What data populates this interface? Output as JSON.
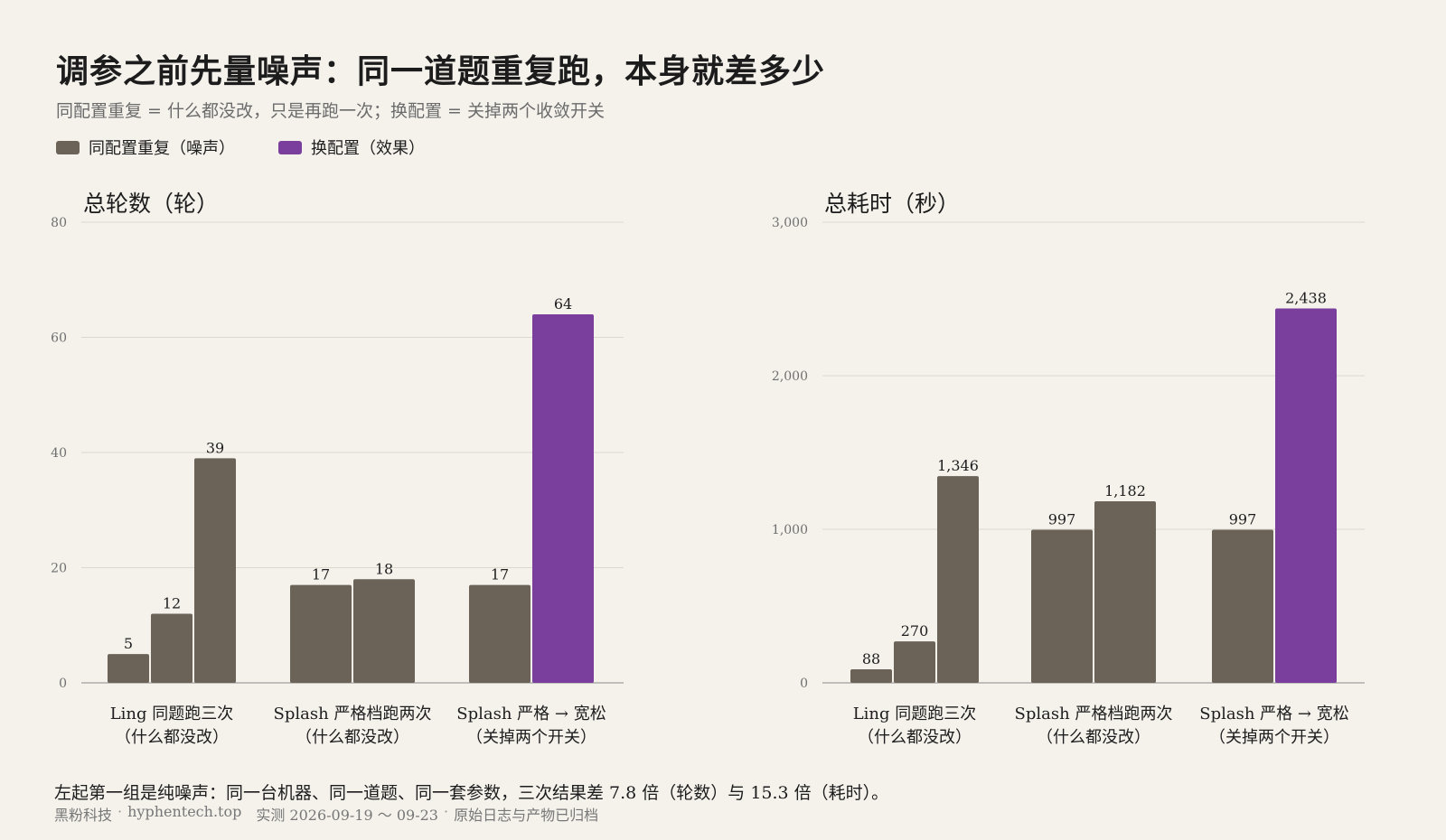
{
  "title": "调参之前先量噪声：同一道题重复跑，本身就差多少",
  "subtitle": "同配置重复 = 什么都没改，只是再跑一次；换配置 = 关掉两个收敛开关",
  "legend": {
    "noise_label": "同配置重复（噪声）",
    "effect_label": "换配置（效果）"
  },
  "colors": {
    "noise": "#6b6357",
    "effect": "#7a3f9d",
    "grid": "#dcd8d0",
    "axis": "#8a8a8a"
  },
  "footnote": "左起第一组是纯噪声：同一台机器、同一道题、同一套参数，三次结果差 7.8 倍（轮数）与 15.3 倍（耗时）。",
  "footer": {
    "brand": "黑粉科技",
    "sep1": "·",
    "site": "hyphentech.top",
    "dates": "实测 2026-09-19 ～ 09-23",
    "sep2": "·",
    "note": "原始日志与产物已归档"
  },
  "chart_data": [
    {
      "type": "bar",
      "title": "总轮数（轮）",
      "ylim": [
        0,
        80
      ],
      "yticks": [
        0,
        20,
        40,
        60,
        80
      ],
      "ytick_labels": [
        "0",
        "20",
        "40",
        "60",
        "80"
      ],
      "grid": true,
      "groups": [
        {
          "label": [
            "Ling 同题跑三次",
            "（什么都没改）"
          ],
          "bars": [
            {
              "value": 5,
              "label": "5",
              "kind": "noise"
            },
            {
              "value": 12,
              "label": "12",
              "kind": "noise"
            },
            {
              "value": 39,
              "label": "39",
              "kind": "noise"
            }
          ]
        },
        {
          "label": [
            "Splash 严格档跑两次",
            "（什么都没改）"
          ],
          "bars": [
            {
              "value": 17,
              "label": "17",
              "kind": "noise"
            },
            {
              "value": 18,
              "label": "18",
              "kind": "noise"
            }
          ]
        },
        {
          "label": [
            "Splash 严格 → 宽松",
            "（关掉两个开关）"
          ],
          "bars": [
            {
              "value": 17,
              "label": "17",
              "kind": "noise"
            },
            {
              "value": 64,
              "label": "64",
              "kind": "effect"
            }
          ]
        }
      ]
    },
    {
      "type": "bar",
      "title": "总耗时（秒）",
      "ylim": [
        0,
        3000
      ],
      "yticks": [
        0,
        1000,
        2000,
        3000
      ],
      "ytick_labels": [
        "0",
        "1,000",
        "2,000",
        "3,000"
      ],
      "grid": true,
      "groups": [
        {
          "label": [
            "Ling 同题跑三次",
            "（什么都没改）"
          ],
          "bars": [
            {
              "value": 88,
              "label": "88",
              "kind": "noise"
            },
            {
              "value": 270,
              "label": "270",
              "kind": "noise"
            },
            {
              "value": 1346,
              "label": "1,346",
              "kind": "noise"
            }
          ]
        },
        {
          "label": [
            "Splash 严格档跑两次",
            "（什么都没改）"
          ],
          "bars": [
            {
              "value": 997,
              "label": "997",
              "kind": "noise"
            },
            {
              "value": 1182,
              "label": "1,182",
              "kind": "noise"
            }
          ]
        },
        {
          "label": [
            "Splash 严格 → 宽松",
            "（关掉两个开关）"
          ],
          "bars": [
            {
              "value": 997,
              "label": "997",
              "kind": "noise"
            },
            {
              "value": 2438,
              "label": "2,438",
              "kind": "effect"
            }
          ]
        }
      ]
    }
  ]
}
